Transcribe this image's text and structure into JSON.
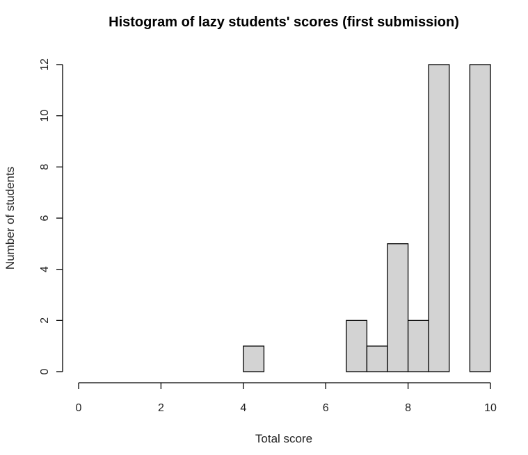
{
  "chart_data": {
    "type": "bar",
    "title": "Histogram of lazy students' scores (first submission)",
    "xlabel": "Total score",
    "ylabel": "Number of students",
    "bin_width": 0.5,
    "bin_starts": [
      0,
      0.5,
      1,
      1.5,
      2,
      2.5,
      3,
      3.5,
      4,
      4.5,
      5,
      5.5,
      6,
      6.5,
      7,
      7.5,
      8,
      8.5,
      9,
      9.5
    ],
    "values": [
      0,
      0,
      0,
      0,
      0,
      0,
      0,
      0,
      1,
      0,
      0,
      0,
      0,
      2,
      1,
      5,
      2,
      12,
      0,
      12
    ],
    "xlim": [
      0,
      10
    ],
    "ylim": [
      0,
      12
    ],
    "xticks": [
      "0",
      "2",
      "4",
      "6",
      "8",
      "10"
    ],
    "yticks": [
      "0",
      "2",
      "4",
      "6",
      "8",
      "10",
      "12"
    ],
    "bar_color": "#d3d3d3",
    "border_color": "#000000",
    "grid": false,
    "legend": "none"
  }
}
